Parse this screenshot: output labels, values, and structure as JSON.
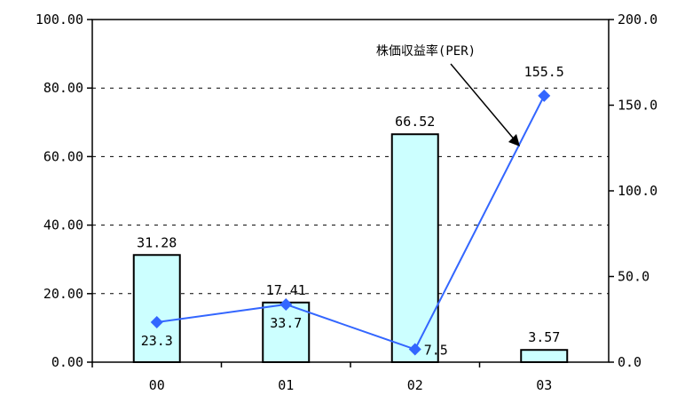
{
  "chart_data": {
    "type": "bar",
    "categories": [
      "00",
      "01",
      "02",
      "03"
    ],
    "series": [
      {
        "type": "bar",
        "axis": "left",
        "values": [
          31.28,
          17.41,
          66.52,
          3.57
        ],
        "labels": [
          "31.28",
          "17.41",
          "66.52",
          "3.57"
        ],
        "color": "#ccffff"
      },
      {
        "type": "line",
        "axis": "right",
        "values": [
          23.3,
          33.7,
          7.5,
          155.5
        ],
        "labels": [
          "23.3",
          "33.7",
          "7.5",
          "155.5"
        ],
        "color": "#3366ff"
      }
    ],
    "y_left": {
      "ylim": [
        0,
        100
      ],
      "ticks": [
        "0.00",
        "20.00",
        "40.00",
        "60.00",
        "80.00",
        "100.00"
      ]
    },
    "y_right": {
      "ylim": [
        0,
        200
      ],
      "ticks": [
        "0.0",
        "50.0",
        "100.0",
        "150.0",
        "200.0"
      ]
    },
    "grid": "dashed horizontal",
    "annotation": {
      "text": "株価収益率(PER)",
      "points_to": "line series"
    }
  }
}
